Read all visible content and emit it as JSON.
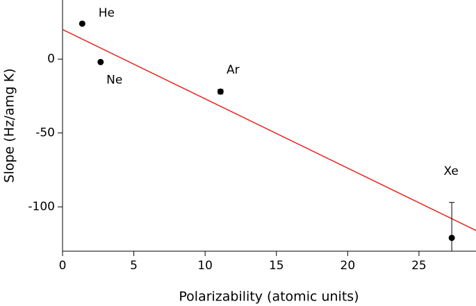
{
  "chart_data": {
    "type": "scatter",
    "x_label": "Polarizability (atomic units)",
    "y_label": "Slope (Hz/amg K)",
    "labels": [
      "He",
      "Ne",
      "Ar",
      "Xe"
    ],
    "x": [
      1.38,
      2.67,
      11.08,
      27.3
    ],
    "values": [
      24,
      -2,
      -22,
      -121
    ],
    "errors": [
      null,
      null,
      1.5,
      24
    ],
    "color": "#000000",
    "fit": {
      "x": [
        0,
        29
      ],
      "y": [
        20,
        -116
      ],
      "color": "#e8201a"
    },
    "xlim": [
      0,
      29
    ],
    "xticks": [
      0,
      5,
      10,
      15,
      20,
      25
    ],
    "ylim": [
      -130,
      40
    ],
    "yticks": [
      -100,
      -50,
      0
    ]
  }
}
